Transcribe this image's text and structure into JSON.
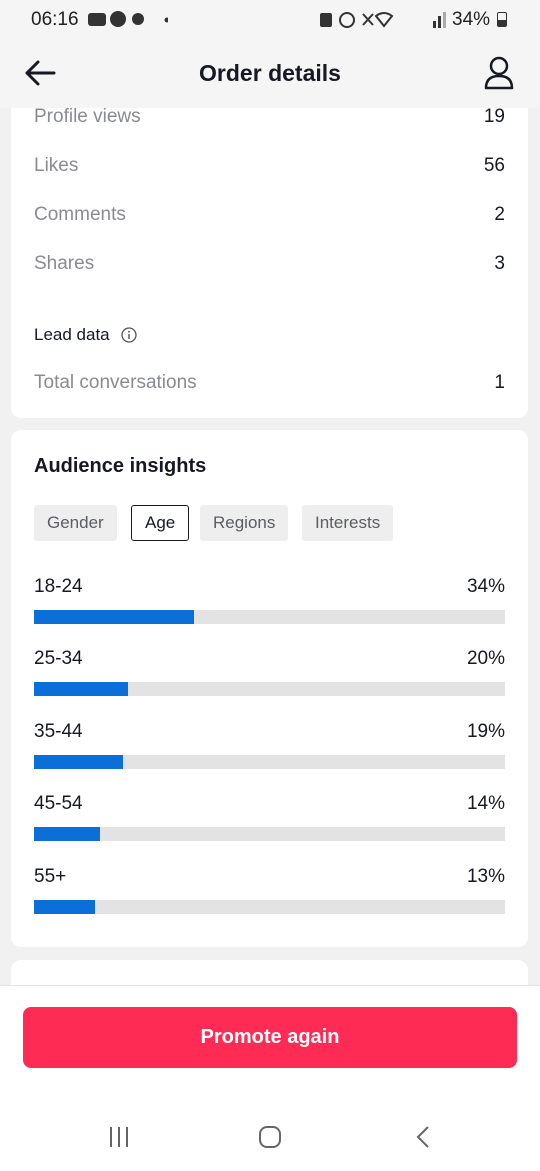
{
  "status_bar": {
    "time": "06:16",
    "battery": "34%"
  },
  "header": {
    "title": "Order details"
  },
  "metrics": [
    {
      "label": "Profile views",
      "value": 19
    },
    {
      "label": "Likes",
      "value": 56
    },
    {
      "label": "Comments",
      "value": 2
    },
    {
      "label": "Shares",
      "value": 3
    }
  ],
  "lead_data": {
    "title": "Lead data",
    "metrics": [
      {
        "label": "Total conversations",
        "value": 1
      }
    ]
  },
  "audience_insights": {
    "title": "Audience insights",
    "tabs": [
      "Gender",
      "Age",
      "Regions",
      "Interests"
    ],
    "selected_tab_index": 1,
    "age": {
      "categories": [
        "18-24",
        "25-34",
        "35-44",
        "45-54",
        "55+"
      ],
      "values": [
        34,
        20,
        19,
        14,
        13
      ],
      "value_labels": [
        "34%",
        "20%",
        "19%",
        "14%",
        "13%"
      ],
      "color": "#0b6fd7"
    }
  },
  "footer": {
    "button": "Promote again"
  }
}
